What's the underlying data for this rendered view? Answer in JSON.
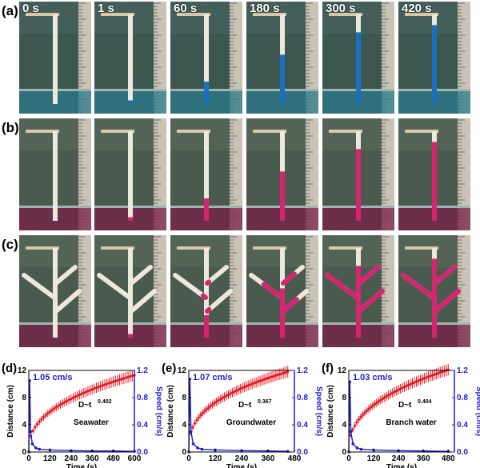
{
  "rows": [
    {
      "label": "(a)",
      "liquid": "blue",
      "tree": false
    },
    {
      "label": "(b)",
      "liquid": "magenta",
      "tree": false
    },
    {
      "label": "(c)",
      "liquid": "magenta",
      "tree": true
    }
  ],
  "times": [
    "0 s",
    "1 s",
    "60 s",
    "180 s",
    "300 s",
    "420 s"
  ],
  "fill_levels": [
    0.0,
    0.04,
    0.25,
    0.55,
    0.8,
    0.88
  ],
  "colors": {
    "blue_liquid": "#1a6fc0",
    "magenta_liquid": "#d6246e",
    "distance": "#e8141b",
    "speed": "#1c1ccf"
  },
  "chart_data": [
    {
      "panel": "(d)",
      "type": "line",
      "annotation_speed": "1.05 cm/s",
      "formula_base": "D~t",
      "formula_exp": "0.402",
      "medium": "Seawater",
      "xlabel": "Time (s)",
      "ylabel_left": "Distance (cm)",
      "ylabel_right": "Speed (cm/s)",
      "xticks": [
        0,
        120,
        240,
        360,
        480,
        600
      ],
      "xlim": [
        0,
        600
      ],
      "yticks_left": [
        0,
        4,
        8,
        12
      ],
      "ylim_left": [
        0,
        12
      ],
      "yticks_right": [
        "0.0",
        "0.4",
        "0.8",
        "1.2"
      ],
      "ylim_right": [
        0,
        1.2
      ],
      "distance_max": 11.3,
      "distance_exponent": 0.402,
      "speed": {
        "x": [
          0,
          5,
          10,
          20,
          40,
          60,
          120,
          240,
          360,
          480,
          600
        ],
        "y": [
          0,
          1.05,
          0.3,
          0.12,
          0.06,
          0.04,
          0.03,
          0.02,
          0.015,
          0.015,
          0.01
        ]
      }
    },
    {
      "panel": "(e)",
      "type": "line",
      "annotation_speed": "1.07 cm/s",
      "formula_base": "D~t",
      "formula_exp": "0.367",
      "medium": "Groundwater",
      "xlabel": "Time (s)",
      "ylabel_left": "Distance (cm)",
      "ylabel_right": "Speed (cm/s)",
      "xticks": [
        0,
        120,
        240,
        360,
        480
      ],
      "xlim": [
        0,
        480
      ],
      "yticks_left": [
        0,
        4,
        8,
        12
      ],
      "ylim_left": [
        0,
        12
      ],
      "yticks_right": [
        "0.0",
        "0.4",
        "0.8",
        "1.2"
      ],
      "ylim_right": [
        0,
        1.2
      ],
      "distance_max": 11.8,
      "distance_exponent": 0.367,
      "speed": {
        "x": [
          0,
          5,
          10,
          20,
          40,
          60,
          120,
          240,
          360,
          450
        ],
        "y": [
          0,
          1.07,
          0.3,
          0.12,
          0.06,
          0.04,
          0.03,
          0.02,
          0.015,
          0.01
        ]
      }
    },
    {
      "panel": "(f)",
      "type": "line",
      "annotation_speed": "1.03 cm/s",
      "formula_base": "D~t",
      "formula_exp": "0.404",
      "medium": "Branch water",
      "xlabel": "Time (s)",
      "ylabel_left": "Distance (cm)",
      "ylabel_right": "Speed (cm/s)",
      "xticks": [
        0,
        120,
        240,
        360,
        480
      ],
      "xlim": [
        0,
        510
      ],
      "yticks_left": [
        0,
        4,
        8,
        12
      ],
      "ylim_left": [
        0,
        12
      ],
      "yticks_right": [
        "0.0",
        "0.4",
        "0.8",
        "1.2"
      ],
      "ylim_right": [
        0,
        1.2
      ],
      "distance_max": 12.1,
      "distance_exponent": 0.404,
      "speed": {
        "x": [
          0,
          5,
          10,
          20,
          40,
          60,
          120,
          240,
          360,
          480
        ],
        "y": [
          0,
          1.03,
          0.3,
          0.12,
          0.06,
          0.04,
          0.03,
          0.02,
          0.015,
          0.01
        ]
      }
    }
  ]
}
